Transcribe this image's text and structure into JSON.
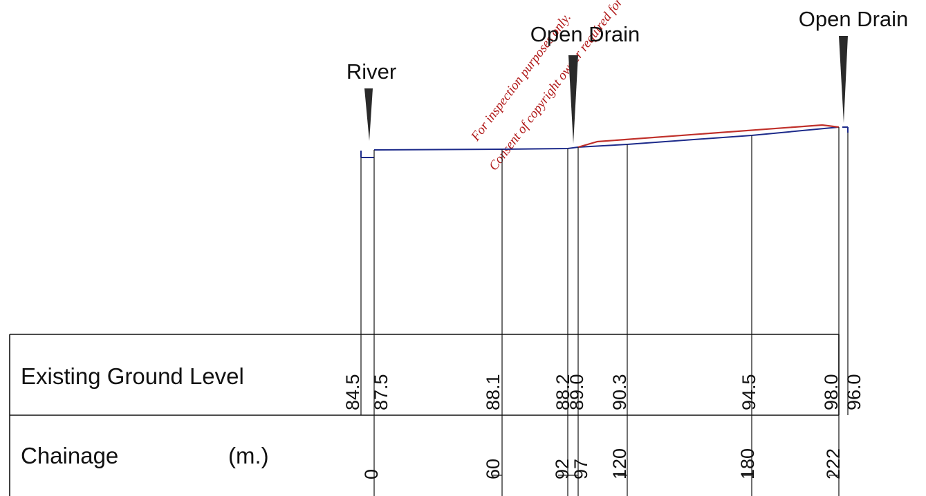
{
  "watermark": {
    "lines": [
      "For inspection purposes only.",
      "Consent of copyright owner required for any other use."
    ],
    "color": "#b01818"
  },
  "features": [
    {
      "label": "River",
      "chainage": 0
    },
    {
      "label": "Open Drain",
      "chainage": 95
    },
    {
      "label": "Open Drain",
      "chainage": 222
    }
  ],
  "table": {
    "rows": [
      {
        "title": "Existing Ground Level",
        "unit": ""
      },
      {
        "title": "Chainage",
        "unit": "(m.)"
      }
    ]
  },
  "chart_data": {
    "type": "line",
    "title": "",
    "xlabel": "Chainage (m.)",
    "ylabel": "Existing Ground Level",
    "stations": [
      {
        "chainage": 0,
        "chainage_label": "0",
        "level": "84.5"
      },
      {
        "chainage": 0,
        "chainage_label": "",
        "level": "87.5"
      },
      {
        "chainage": 60,
        "chainage_label": "60",
        "level": "88.1"
      },
      {
        "chainage": 92,
        "chainage_label": "92",
        "level": "88.2"
      },
      {
        "chainage": 97,
        "chainage_label": "97",
        "level": "89.0"
      },
      {
        "chainage": 120,
        "chainage_label": "120",
        "level": "90.3"
      },
      {
        "chainage": 180,
        "chainage_label": "180",
        "level": "94.5"
      },
      {
        "chainage": 222,
        "chainage_label": "222",
        "level": "98.0"
      },
      {
        "chainage": 222,
        "chainage_label": "",
        "level": "96.0"
      }
    ],
    "series": [
      {
        "values": [
          [
            0,
            87.5
          ],
          [
            60,
            88.1
          ],
          [
            92,
            88.2
          ],
          [
            97,
            89.0
          ],
          [
            120,
            90.3
          ],
          [
            180,
            94.5
          ],
          [
            222,
            98.0
          ]
        ],
        "color": "#1c2a8a"
      },
      {
        "values": [
          [
            97,
            89.0
          ],
          [
            106,
            90.8
          ],
          [
            214,
            98.5
          ],
          [
            222,
            98.0
          ]
        ],
        "color": "#c0302a"
      }
    ]
  }
}
